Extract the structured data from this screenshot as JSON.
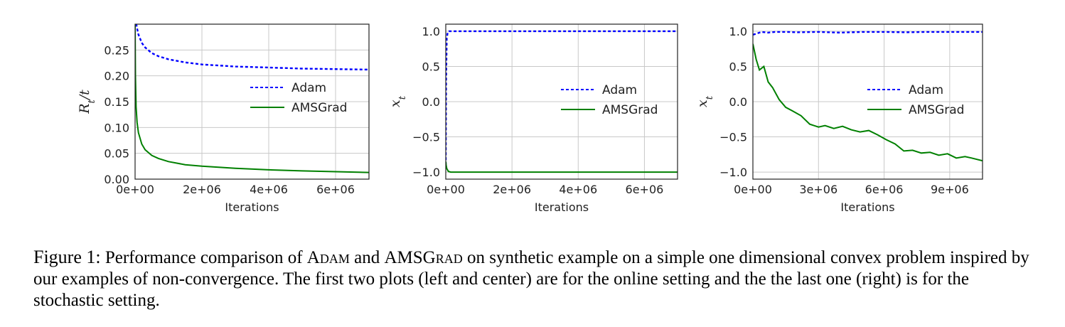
{
  "chart_data": [
    {
      "type": "line",
      "panel": "left",
      "xlabel": "Iterations",
      "ylabel": "R_t/t",
      "xlim": [
        0,
        7000000
      ],
      "ylim": [
        0.0,
        0.3
      ],
      "xticks": [
        0,
        2000000,
        4000000,
        6000000
      ],
      "xtick_labels": [
        "0e+00",
        "2e+06",
        "4e+06",
        "6e+06"
      ],
      "yticks": [
        0.0,
        0.05,
        0.1,
        0.15,
        0.2,
        0.25
      ],
      "ytick_labels": [
        "0.00",
        "0.05",
        "0.10",
        "0.15",
        "0.20",
        "0.25"
      ],
      "grid": true,
      "legend_position": "center-right",
      "series": [
        {
          "name": "Adam",
          "color": "#0000ff",
          "style": "dashed",
          "x": [
            0,
            20000,
            50000,
            100000,
            200000,
            300000,
            500000,
            700000,
            1000000,
            1500000,
            2000000,
            2500000,
            3000000,
            4000000,
            5000000,
            6000000,
            7000000
          ],
          "y": [
            0.32,
            0.31,
            0.295,
            0.28,
            0.264,
            0.255,
            0.244,
            0.238,
            0.232,
            0.226,
            0.222,
            0.22,
            0.218,
            0.216,
            0.214,
            0.213,
            0.212
          ]
        },
        {
          "name": "AMSGrad",
          "color": "#008000",
          "style": "solid",
          "x": [
            0,
            10000,
            30000,
            60000,
            100000,
            200000,
            300000,
            500000,
            700000,
            1000000,
            1500000,
            2000000,
            3000000,
            4000000,
            5000000,
            6000000,
            7000000
          ],
          "y": [
            0.3,
            0.2,
            0.14,
            0.11,
            0.09,
            0.068,
            0.057,
            0.046,
            0.04,
            0.034,
            0.028,
            0.025,
            0.021,
            0.018,
            0.016,
            0.0145,
            0.013
          ]
        }
      ]
    },
    {
      "type": "line",
      "panel": "center",
      "xlabel": "Iterations",
      "ylabel": "x_t",
      "xlim": [
        0,
        7000000
      ],
      "ylim": [
        -1.1,
        1.1
      ],
      "xticks": [
        0,
        2000000,
        4000000,
        6000000
      ],
      "xtick_labels": [
        "0e+00",
        "2e+06",
        "4e+06",
        "6e+06"
      ],
      "yticks": [
        -1.0,
        -0.5,
        0.0,
        0.5,
        1.0
      ],
      "ytick_labels": [
        "−1.0",
        "−0.5",
        "0.0",
        "0.5",
        "1.0"
      ],
      "grid": true,
      "legend_position": "center-right",
      "series": [
        {
          "name": "Adam",
          "color": "#0000ff",
          "style": "dashed",
          "x": [
            0,
            10000,
            30000,
            60000,
            100000,
            7000000
          ],
          "y": [
            -0.9,
            0.3,
            0.9,
            0.99,
            1.0,
            1.0
          ]
        },
        {
          "name": "AMSGrad",
          "color": "#008000",
          "style": "solid",
          "x": [
            0,
            10000,
            30000,
            80000,
            150000,
            7000000
          ],
          "y": [
            -0.85,
            -0.9,
            -0.95,
            -0.99,
            -1.0,
            -1.0
          ]
        }
      ]
    },
    {
      "type": "line",
      "panel": "right",
      "xlabel": "Iterations",
      "ylabel": "x_t",
      "xlim": [
        0,
        10500000
      ],
      "ylim": [
        -1.1,
        1.1
      ],
      "xticks": [
        0,
        3000000,
        6000000,
        9000000
      ],
      "xtick_labels": [
        "0e+00",
        "3e+06",
        "6e+06",
        "9e+06"
      ],
      "yticks": [
        -1.0,
        -0.5,
        0.0,
        0.5,
        1.0
      ],
      "ytick_labels": [
        "−1.0",
        "−0.5",
        "0.0",
        "0.5",
        "1.0"
      ],
      "grid": true,
      "legend_position": "center-right",
      "series": [
        {
          "name": "Adam",
          "color": "#0000ff",
          "style": "dashed",
          "x": [
            0,
            200000,
            400000,
            700000,
            1000000,
            1500000,
            2000000,
            3000000,
            4000000,
            5000000,
            6000000,
            7000000,
            8000000,
            9000000,
            10500000
          ],
          "y": [
            0.95,
            0.97,
            0.99,
            0.98,
            0.99,
            0.99,
            0.985,
            0.99,
            0.98,
            0.99,
            0.99,
            0.985,
            0.99,
            0.99,
            0.99
          ]
        },
        {
          "name": "AMSGrad",
          "color": "#008000",
          "style": "solid",
          "x": [
            0,
            150000,
            300000,
            500000,
            700000,
            900000,
            1200000,
            1500000,
            1800000,
            2200000,
            2600000,
            3000000,
            3300000,
            3700000,
            4100000,
            4500000,
            4900000,
            5300000,
            5700000,
            6100000,
            6500000,
            6900000,
            7300000,
            7700000,
            8100000,
            8500000,
            8900000,
            9300000,
            9700000,
            10000000,
            10500000
          ],
          "y": [
            0.82,
            0.6,
            0.45,
            0.5,
            0.28,
            0.2,
            0.03,
            -0.08,
            -0.13,
            -0.2,
            -0.32,
            -0.36,
            -0.34,
            -0.38,
            -0.35,
            -0.4,
            -0.43,
            -0.41,
            -0.47,
            -0.54,
            -0.6,
            -0.7,
            -0.69,
            -0.73,
            -0.72,
            -0.76,
            -0.74,
            -0.8,
            -0.78,
            -0.8,
            -0.84
          ]
        }
      ]
    }
  ],
  "caption": {
    "label": "Figure 1:",
    "text_parts": [
      " Performance comparison of ",
      "Adam",
      " and ",
      "AMSGrad",
      " on synthetic example on a simple one dimensional convex problem inspired by our examples of non-convergence. The first two plots (left and center) are for the online setting and the the last one (right) is for the stochastic setting."
    ]
  }
}
